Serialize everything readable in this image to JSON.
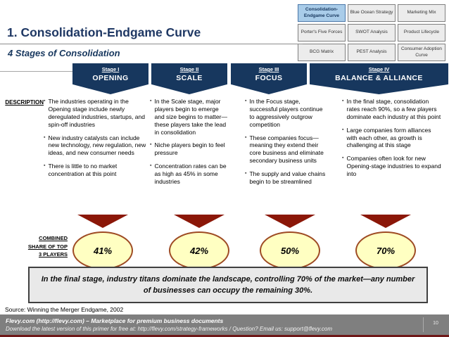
{
  "header": {
    "title": "1. Consolidation-Endgame Curve",
    "subtitle": "4 Stages of Consolidation"
  },
  "nav": {
    "selected": "Consolidation-Endgame Curve",
    "items": [
      "Consolidation-Endgame Curve",
      "Blue Ocean Strategy",
      "Marketing Mix",
      "Porter's Five Forces",
      "SWOT Analysis",
      "Product Lifecycle",
      "BCG Matrix",
      "PEST Analysis",
      "Consumer Adoption Curve"
    ]
  },
  "description_label": "DESCRIPTION",
  "stages": [
    {
      "label": "Stage I",
      "name": "OPENING",
      "bullets": [
        "The industries operating in the Opening stage include newly deregulated industries, startups, and spin-off industries",
        "New industry catalysts can include new technology, new regulation, new ideas, and new consumer needs",
        "There is little to no market concentration at this point"
      ]
    },
    {
      "label": "Stage II",
      "name": "SCALE",
      "bullets": [
        "In the Scale stage, major players begin to emerge and size begins to matter—these players take the lead in consolidation",
        "Niche players begin to feel pressure",
        "Concentration rates can be as high as 45% in some industries"
      ]
    },
    {
      "label": "Stage III",
      "name": "FOCUS",
      "bullets": [
        "In the Focus stage, successful players continue to aggressively outgrow competition",
        "These companies focus—meaning they extend their core business and eliminate secondary business units",
        "The supply and value chains begin to be streamlined"
      ]
    },
    {
      "label": "Stage IV",
      "name": "BALANCE & ALLIANCE",
      "bullets": [
        "In the final stage, consolidation rates reach 90%, so a few players dominate each industry at this point",
        "Large companies form alliances with each other, as growth is challenging at this stage",
        "Companies often look for new Opening-stage industries to expand into"
      ]
    }
  ],
  "share": {
    "label_lines": [
      "COMBINED",
      "SHARE OF TOP",
      "3 PLAYERS"
    ],
    "values": [
      "41%",
      "42%",
      "50%",
      "70%"
    ]
  },
  "chart_summary": {
    "metric": "Combined share of top 3 players by stage",
    "stages": [
      "OPENING",
      "SCALE",
      "FOCUS",
      "BALANCE & ALLIANCE"
    ],
    "values_percent": [
      41,
      42,
      50,
      70
    ]
  },
  "callout": "In the final stage, industry titans dominate the landscape, controlling 70% of the market—any number of businesses can occupy the remaining 30%.",
  "source": "Source: Winning the Merger Endgame, 2002",
  "footer": {
    "line1": "Flevy.com (http://flevy.com) – Marketplace for premium business documents",
    "line2": "Download the latest version of this primer for free at: http://flevy.com/strategy-frameworks  /  Question? Email us: support@flevy.com",
    "page": "10"
  },
  "colors": {
    "title_navy": "#1F3864",
    "banner_navy": "#17375E",
    "triangle_maroon": "#8B1708",
    "oval_fill": "#FFFFC2",
    "oval_border": "#9E4B24",
    "nav_selected_fill": "#A9CCE9",
    "callout_fill": "#E9E9E9",
    "footer_gray": "#7F7F7F",
    "bottom_strip_maroon": "#6E1818"
  }
}
